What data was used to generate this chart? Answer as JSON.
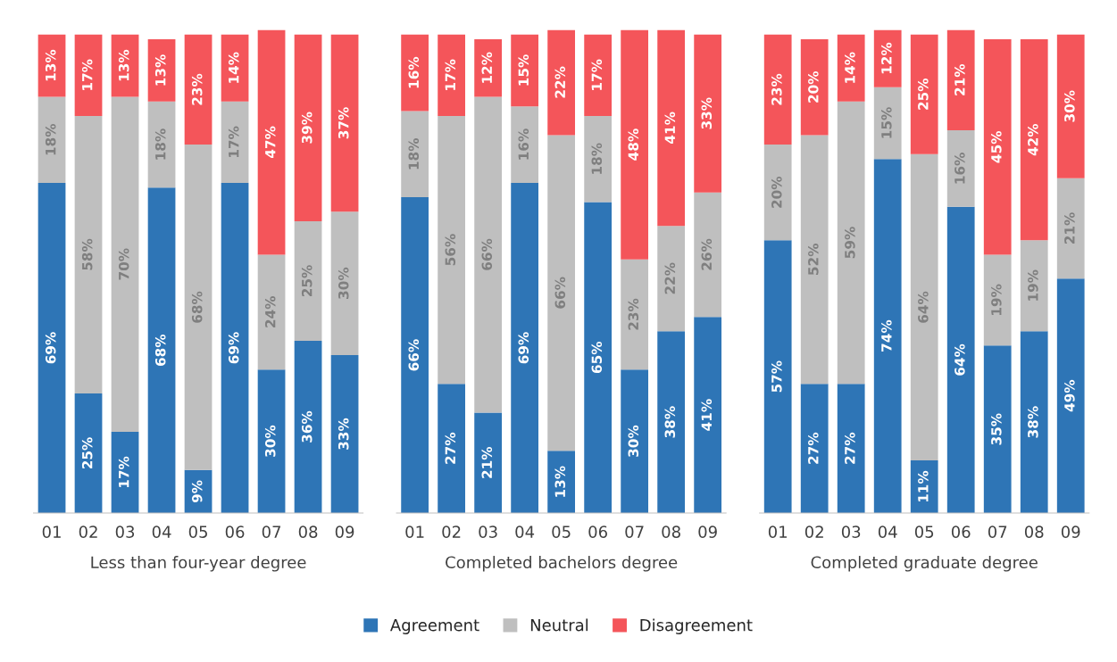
{
  "chart_data": [
    {
      "type": "bar",
      "stacked": true,
      "tick_labels": "x",
      "legend": "bottom",
      "xlabel": "Less than four-year degree",
      "categories": [
        "01",
        "02",
        "03",
        "04",
        "05",
        "06",
        "07",
        "08",
        "09"
      ],
      "series": [
        {
          "name": "Agreement",
          "color": "#2e75b6",
          "values": [
            69,
            25,
            17,
            68,
            9,
            69,
            30,
            36,
            33
          ],
          "value_labels": [
            "69%",
            "25%",
            "17%",
            "68%",
            "9%",
            "69%",
            "30%",
            "36%",
            "33%"
          ]
        },
        {
          "name": "Neutral",
          "color": "#bfbfbf",
          "values": [
            18,
            58,
            70,
            18,
            68,
            17,
            24,
            25,
            30
          ],
          "value_labels": [
            "18%",
            "58%",
            "70%",
            "18%",
            "68%",
            "17%",
            "24%",
            "25%",
            "30%"
          ]
        },
        {
          "name": "Disagreement",
          "color": "#f4555a",
          "values": [
            13,
            17,
            13,
            13,
            23,
            14,
            47,
            39,
            37
          ],
          "value_labels": [
            "13%",
            "17%",
            "13%",
            "13%",
            "23%",
            "14%",
            "47%",
            "39%",
            "37%"
          ]
        }
      ]
    },
    {
      "type": "bar",
      "stacked": true,
      "tick_labels": "x",
      "xlabel": "Completed bachelors degree",
      "categories": [
        "01",
        "02",
        "03",
        "04",
        "05",
        "06",
        "07",
        "08",
        "09"
      ],
      "series": [
        {
          "color": "#2e75b6",
          "values": [
            66,
            27,
            21,
            69,
            13,
            65,
            30,
            38,
            41
          ],
          "value_labels": [
            "66%",
            "27%",
            "21%",
            "69%",
            "13%",
            "65%",
            "30%",
            "38%",
            "41%"
          ]
        },
        {
          "color": "#bfbfbf",
          "values": [
            18,
            56,
            66,
            16,
            66,
            18,
            23,
            22,
            26
          ],
          "value_labels": [
            "18%",
            "56%",
            "66%",
            "16%",
            "66%",
            "18%",
            "23%",
            "22%",
            "26%"
          ]
        },
        {
          "color": "#f4555a",
          "values": [
            16,
            17,
            12,
            15,
            22,
            17,
            48,
            41,
            33
          ],
          "value_labels": [
            "16%",
            "17%",
            "12%",
            "15%",
            "22%",
            "17%",
            "48%",
            "41%",
            "33%"
          ]
        }
      ]
    },
    {
      "type": "bar",
      "stacked": true,
      "tick_labels": "x",
      "xlabel": "Completed graduate degree",
      "categories": [
        "01",
        "02",
        "03",
        "04",
        "05",
        "06",
        "07",
        "08",
        "09"
      ],
      "series": [
        {
          "color": "#2e75b6",
          "values": [
            57,
            27,
            27,
            74,
            11,
            64,
            35,
            38,
            49
          ],
          "value_labels": [
            "57%",
            "27%",
            "27%",
            "74%",
            "11%",
            "64%",
            "35%",
            "38%",
            "49%"
          ]
        },
        {
          "color": "#bfbfbf",
          "values": [
            20,
            52,
            59,
            15,
            64,
            16,
            19,
            19,
            21
          ],
          "value_labels": [
            "20%",
            "52%",
            "59%",
            "15%",
            "64%",
            "16%",
            "19%",
            "19%",
            "21%"
          ]
        },
        {
          "color": "#f4555a",
          "values": [
            23,
            20,
            14,
            12,
            25,
            21,
            45,
            42,
            30
          ],
          "value_labels": [
            "23%",
            "20%",
            "14%",
            "12%",
            "25%",
            "21%",
            "45%",
            "42%",
            "30%"
          ]
        }
      ]
    }
  ]
}
